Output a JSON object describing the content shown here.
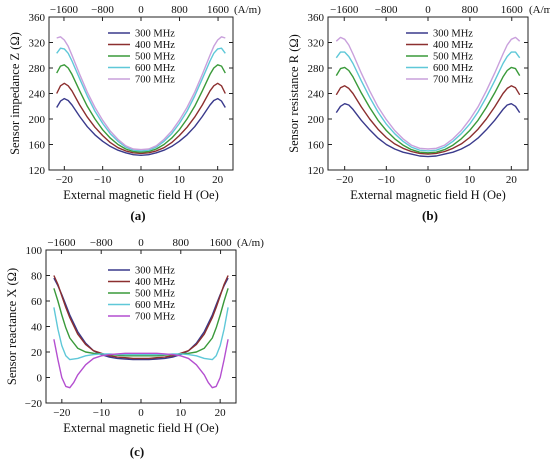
{
  "chart_data": [
    {
      "type": "line",
      "panel_label": "(a)",
      "xlabel": "External magnetic field H (Oe)",
      "ylabel": "Sensor impedance Z (Ω)",
      "xlim": [
        -24,
        24
      ],
      "ylim": [
        120,
        360
      ],
      "x_ticks": [
        "−20",
        "−10",
        "0",
        "10",
        "20"
      ],
      "x_tick_values": [
        -20,
        -10,
        0,
        10,
        20
      ],
      "y_ticks": [
        "120",
        "160",
        "200",
        "240",
        "280",
        "320",
        "360"
      ],
      "y_tick_values": [
        120,
        160,
        200,
        240,
        280,
        320,
        360
      ],
      "top_ticks": [
        "−1600",
        "−800",
        "0",
        "800",
        "1600"
      ],
      "top_tick_values": [
        -20.1,
        -10.05,
        0,
        10.05,
        20.1
      ],
      "top_unit": "(A/m)",
      "legend_placement": "top-center",
      "grid": false,
      "series": [
        {
          "name": "300 MHz",
          "color": "#3a3a8c",
          "x": [
            -22,
            -21,
            -20,
            -19,
            -18,
            -16,
            -14,
            -12,
            -10,
            -8,
            -6,
            -4,
            -2,
            0,
            2,
            4,
            6,
            8,
            10,
            12,
            14,
            16,
            18,
            19,
            20,
            21,
            22
          ],
          "y": [
            218,
            228,
            232,
            229,
            222,
            204,
            188,
            175,
            165,
            157,
            151,
            147,
            144,
            143,
            144,
            147,
            151,
            157,
            165,
            175,
            188,
            204,
            222,
            229,
            232,
            228,
            218
          ]
        },
        {
          "name": "400 MHz",
          "color": "#8c2f2f",
          "x": [
            -22,
            -21,
            -20,
            -19,
            -18,
            -16,
            -14,
            -12,
            -10,
            -8,
            -6,
            -4,
            -2,
            0,
            2,
            4,
            6,
            8,
            10,
            12,
            14,
            16,
            18,
            19,
            20,
            21,
            22
          ],
          "y": [
            240,
            252,
            256,
            252,
            244,
            222,
            203,
            187,
            174,
            163,
            155,
            150,
            147,
            146,
            147,
            150,
            155,
            163,
            174,
            187,
            203,
            222,
            244,
            252,
            256,
            252,
            240
          ]
        },
        {
          "name": "500 MHz",
          "color": "#3a9a3a",
          "x": [
            -22,
            -21,
            -20,
            -19,
            -18,
            -16,
            -14,
            -12,
            -10,
            -8,
            -6,
            -4,
            -2,
            0,
            2,
            4,
            6,
            8,
            10,
            12,
            14,
            16,
            18,
            19,
            20,
            21,
            22
          ],
          "y": [
            272,
            283,
            285,
            280,
            270,
            244,
            220,
            200,
            183,
            170,
            160,
            153,
            149,
            148,
            149,
            153,
            160,
            170,
            183,
            200,
            220,
            244,
            270,
            280,
            285,
            283,
            272
          ]
        },
        {
          "name": "600 MHz",
          "color": "#5fc8d8",
          "x": [
            -22,
            -21,
            -20,
            -19,
            -18,
            -16,
            -14,
            -12,
            -10,
            -8,
            -6,
            -4,
            -2,
            0,
            2,
            4,
            6,
            8,
            10,
            12,
            14,
            16,
            18,
            19,
            20,
            21,
            22
          ],
          "y": [
            303,
            311,
            310,
            303,
            291,
            263,
            236,
            212,
            193,
            177,
            165,
            156,
            151,
            150,
            151,
            156,
            165,
            177,
            193,
            212,
            236,
            263,
            291,
            303,
            310,
            311,
            303
          ]
        },
        {
          "name": "700 MHz",
          "color": "#c9a0dc",
          "x": [
            -22,
            -21,
            -20,
            -19,
            -18,
            -16,
            -14,
            -12,
            -10,
            -8,
            -6,
            -4,
            -2,
            0,
            2,
            4,
            6,
            8,
            10,
            12,
            14,
            16,
            18,
            19,
            20,
            21,
            22
          ],
          "y": [
            327,
            329,
            324,
            314,
            300,
            270,
            242,
            218,
            198,
            181,
            168,
            158,
            153,
            152,
            153,
            158,
            168,
            181,
            198,
            218,
            242,
            270,
            300,
            314,
            324,
            329,
            327
          ]
        }
      ]
    },
    {
      "type": "line",
      "panel_label": "(b)",
      "xlabel": "External magnetic field H (Oe)",
      "ylabel": "Sensor resistance R (Ω)",
      "xlim": [
        -24,
        24
      ],
      "ylim": [
        120,
        360
      ],
      "x_ticks": [
        "−20",
        "−10",
        "0",
        "10",
        "20"
      ],
      "x_tick_values": [
        -20,
        -10,
        0,
        10,
        20
      ],
      "y_ticks": [
        "120",
        "160",
        "200",
        "240",
        "280",
        "320",
        "360"
      ],
      "y_tick_values": [
        120,
        160,
        200,
        240,
        280,
        320,
        360
      ],
      "top_ticks": [
        "−1600",
        "−800",
        "0",
        "800",
        "1600"
      ],
      "top_tick_values": [
        -20.1,
        -10.05,
        0,
        10.05,
        20.1
      ],
      "top_unit": "(A/m)",
      "legend_placement": "top-center",
      "grid": false,
      "series": [
        {
          "name": "300 MHz",
          "color": "#3a3a8c",
          "x": [
            -22,
            -21,
            -20,
            -19,
            -18,
            -16,
            -14,
            -12,
            -10,
            -8,
            -6,
            -4,
            -2,
            0,
            2,
            4,
            6,
            8,
            10,
            12,
            14,
            16,
            18,
            19,
            20,
            21,
            22
          ],
          "y": [
            210,
            220,
            224,
            222,
            215,
            198,
            183,
            170,
            160,
            153,
            148,
            145,
            142,
            141,
            142,
            145,
            148,
            153,
            160,
            170,
            183,
            198,
            215,
            222,
            224,
            220,
            210
          ]
        },
        {
          "name": "400 MHz",
          "color": "#8c2f2f",
          "x": [
            -22,
            -21,
            -20,
            -19,
            -18,
            -16,
            -14,
            -12,
            -10,
            -8,
            -6,
            -4,
            -2,
            0,
            2,
            4,
            6,
            8,
            10,
            12,
            14,
            16,
            18,
            19,
            20,
            21,
            22
          ],
          "y": [
            238,
            249,
            252,
            248,
            240,
            219,
            200,
            184,
            171,
            161,
            154,
            149,
            146,
            145,
            146,
            149,
            154,
            161,
            171,
            184,
            200,
            219,
            240,
            248,
            252,
            249,
            238
          ]
        },
        {
          "name": "500 MHz",
          "color": "#3a9a3a",
          "x": [
            -22,
            -21,
            -20,
            -19,
            -18,
            -16,
            -14,
            -12,
            -10,
            -8,
            -6,
            -4,
            -2,
            0,
            2,
            4,
            6,
            8,
            10,
            12,
            14,
            16,
            18,
            19,
            20,
            21,
            22
          ],
          "y": [
            268,
            279,
            281,
            276,
            266,
            241,
            218,
            198,
            182,
            169,
            159,
            152,
            148,
            147,
            148,
            152,
            159,
            169,
            182,
            198,
            218,
            241,
            266,
            276,
            281,
            279,
            268
          ]
        },
        {
          "name": "600 MHz",
          "color": "#5fc8d8",
          "x": [
            -22,
            -21,
            -20,
            -19,
            -18,
            -16,
            -14,
            -12,
            -10,
            -8,
            -6,
            -4,
            -2,
            0,
            2,
            4,
            6,
            8,
            10,
            12,
            14,
            16,
            18,
            19,
            20,
            21,
            22
          ],
          "y": [
            296,
            305,
            305,
            298,
            287,
            260,
            234,
            211,
            192,
            177,
            165,
            156,
            151,
            150,
            151,
            156,
            165,
            177,
            192,
            211,
            234,
            260,
            287,
            298,
            305,
            305,
            296
          ]
        },
        {
          "name": "700 MHz",
          "color": "#c9a0dc",
          "x": [
            -22,
            -21,
            -20,
            -19,
            -18,
            -16,
            -14,
            -12,
            -10,
            -8,
            -6,
            -4,
            -2,
            0,
            2,
            4,
            6,
            8,
            10,
            12,
            14,
            16,
            18,
            19,
            20,
            21,
            22
          ],
          "y": [
            322,
            328,
            325,
            316,
            302,
            272,
            244,
            219,
            199,
            182,
            169,
            159,
            154,
            153,
            154,
            159,
            169,
            182,
            199,
            219,
            244,
            272,
            302,
            316,
            325,
            328,
            322
          ]
        }
      ]
    },
    {
      "type": "line",
      "panel_label": "(c)",
      "xlabel": "External magnetic field H (Oe)",
      "ylabel": "Sensor reactance X (Ω)",
      "xlim": [
        -24,
        24
      ],
      "ylim": [
        -20,
        100
      ],
      "x_ticks": [
        "−20",
        "−10",
        "0",
        "10",
        "20"
      ],
      "x_tick_values": [
        -20,
        -10,
        0,
        10,
        20
      ],
      "y_ticks": [
        "−20",
        "0",
        "20",
        "40",
        "60",
        "80",
        "100"
      ],
      "y_tick_values": [
        -20,
        0,
        20,
        40,
        60,
        80,
        100
      ],
      "top_ticks": [
        "−1600",
        "−800",
        "0",
        "800",
        "1600"
      ],
      "top_tick_values": [
        -20.1,
        -10.05,
        0,
        10.05,
        20.1
      ],
      "top_unit": "(A/m)",
      "legend_placement": "top-center",
      "grid": false,
      "series": [
        {
          "name": "300 MHz",
          "color": "#3a3a8c",
          "x": [
            -22,
            -21,
            -20,
            -19,
            -18,
            -16,
            -14,
            -12,
            -10,
            -8,
            -6,
            -4,
            -2,
            0,
            2,
            4,
            6,
            8,
            10,
            12,
            14,
            16,
            18,
            19,
            20,
            21,
            22
          ],
          "y": [
            78,
            72,
            65,
            57,
            49,
            36,
            27,
            21,
            18,
            16,
            15,
            14.5,
            14,
            14,
            14,
            14.5,
            15,
            16,
            18,
            21,
            27,
            36,
            49,
            57,
            65,
            72,
            78
          ]
        },
        {
          "name": "400 MHz",
          "color": "#8c2f2f",
          "x": [
            -22,
            -21,
            -20,
            -19,
            -18,
            -16,
            -14,
            -12,
            -10,
            -8,
            -6,
            -4,
            -2,
            0,
            2,
            4,
            6,
            8,
            10,
            12,
            14,
            16,
            18,
            19,
            20,
            21,
            22
          ],
          "y": [
            80,
            73,
            64,
            55,
            47,
            34,
            26,
            21,
            19,
            17,
            16,
            15.5,
            15,
            15,
            15,
            15.5,
            16,
            17,
            19,
            21,
            26,
            34,
            47,
            55,
            64,
            73,
            80
          ]
        },
        {
          "name": "500 MHz",
          "color": "#3a9a3a",
          "x": [
            -22,
            -21,
            -20,
            -19,
            -18,
            -16,
            -14,
            -12,
            -10,
            -8,
            -6,
            -4,
            -2,
            0,
            2,
            4,
            6,
            8,
            10,
            12,
            14,
            16,
            18,
            19,
            20,
            21,
            22
          ],
          "y": [
            70,
            60,
            49,
            39,
            31,
            23,
            20,
            19,
            18.5,
            18,
            17.5,
            17,
            17,
            17,
            17,
            17,
            17.5,
            18,
            18.5,
            19,
            20,
            23,
            31,
            39,
            49,
            60,
            70
          ]
        },
        {
          "name": "600 MHz",
          "color": "#5fc8d8",
          "x": [
            -22,
            -21,
            -20,
            -19,
            -18,
            -16,
            -14,
            -12,
            -10,
            -8,
            -6,
            -4,
            -2,
            0,
            2,
            4,
            6,
            8,
            10,
            12,
            14,
            16,
            18,
            19,
            20,
            21,
            22
          ],
          "y": [
            55,
            38,
            25,
            17,
            14,
            15,
            17,
            18,
            18.5,
            18.5,
            18,
            18,
            18,
            18,
            18,
            18,
            18,
            18.5,
            18.5,
            18,
            17,
            15,
            14,
            17,
            25,
            38,
            55
          ]
        },
        {
          "name": "700 MHz",
          "color": "#b44fd0",
          "x": [
            -22,
            -21,
            -20,
            -19,
            -18,
            -17,
            -16,
            -14,
            -12,
            -10,
            -8,
            -6,
            -4,
            -2,
            0,
            2,
            4,
            6,
            8,
            10,
            12,
            14,
            16,
            17,
            18,
            19,
            20,
            21,
            22
          ],
          "y": [
            30,
            14,
            0,
            -7,
            -8,
            -4,
            2,
            10,
            15,
            17,
            18,
            18.5,
            19,
            19,
            19,
            19,
            19,
            18.5,
            18,
            17,
            15,
            10,
            2,
            -4,
            -8,
            -7,
            0,
            14,
            30
          ]
        }
      ]
    }
  ]
}
